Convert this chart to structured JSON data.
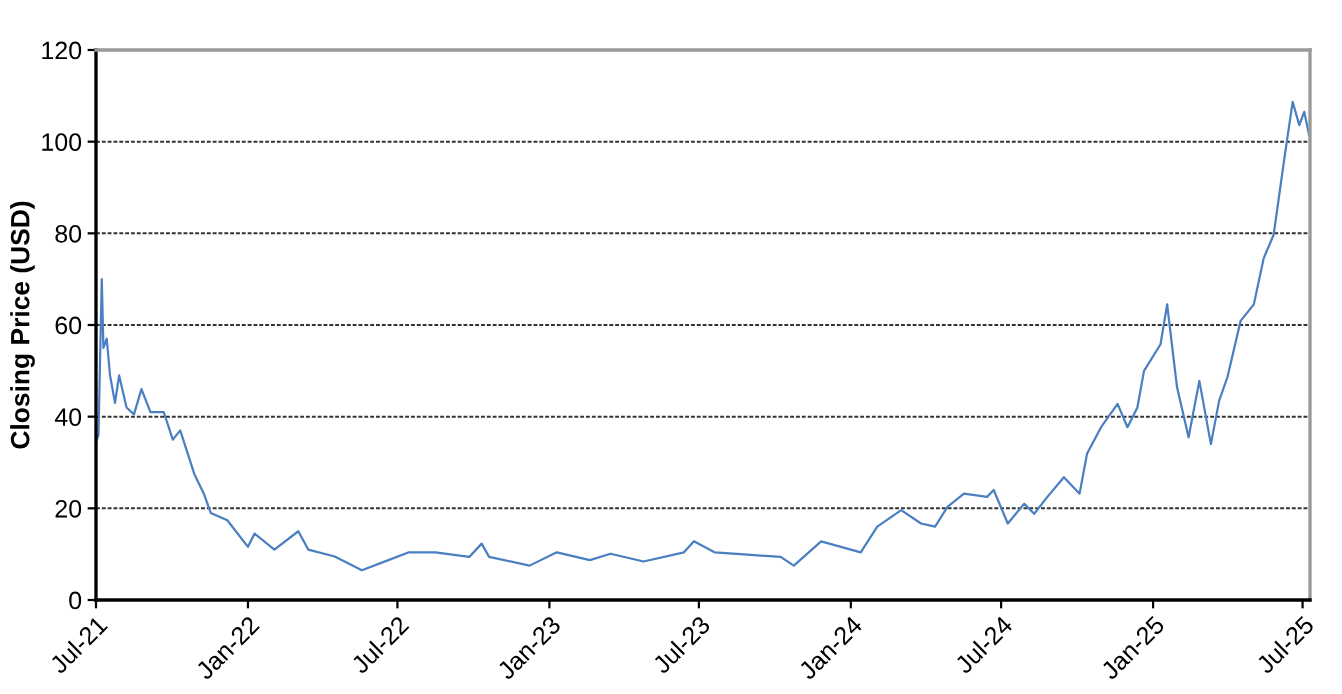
{
  "chart_data": {
    "type": "line",
    "ylabel": "Closing Price (USD)",
    "x": [
      "2021-07-02",
      "2021-07-04",
      "2021-07-08",
      "2021-07-10",
      "2021-07-14",
      "2021-07-18",
      "2021-07-24",
      "2021-07-29",
      "2021-08-07",
      "2021-08-16",
      "2021-08-25",
      "2021-09-05",
      "2021-09-21",
      "2021-10-02",
      "2021-10-11",
      "2021-10-28",
      "2021-11-09",
      "2021-11-17",
      "2021-12-07",
      "2022-01-01",
      "2022-01-09",
      "2022-02-02",
      "2022-03-03",
      "2022-03-15",
      "2022-04-16",
      "2022-05-19",
      "2022-06-20",
      "2022-07-15",
      "2022-08-16",
      "2022-09-26",
      "2022-10-11",
      "2022-10-20",
      "2022-12-08",
      "2023-01-10",
      "2023-02-19",
      "2023-03-16",
      "2023-04-25",
      "2023-06-13",
      "2023-06-25",
      "2023-07-20",
      "2023-08-29",
      "2023-10-08",
      "2023-10-24",
      "2023-11-26",
      "2024-01-13",
      "2024-02-02",
      "2024-03-02",
      "2024-03-26",
      "2024-04-12",
      "2024-04-27",
      "2024-05-17",
      "2024-06-14",
      "2024-06-22",
      "2024-07-09",
      "2024-07-29",
      "2024-08-10",
      "2024-08-26",
      "2024-09-15",
      "2024-10-04",
      "2024-10-13",
      "2024-10-30",
      "2024-11-19",
      "2024-12-01",
      "2024-12-13",
      "2024-12-21",
      "2025-01-10",
      "2025-01-18",
      "2025-01-30",
      "2025-02-13",
      "2025-02-26",
      "2025-03-12",
      "2025-03-22",
      "2025-04-01",
      "2025-04-17",
      "2025-05-03",
      "2025-05-15",
      "2025-05-27",
      "2025-06-09",
      "2025-06-19",
      "2025-06-27",
      "2025-07-03",
      "2025-07-09"
    ],
    "series": [
      {
        "color": "#4a7fc1",
        "values": [
          35,
          36,
          70,
          55,
          57,
          49,
          43,
          49,
          42,
          40.5,
          46,
          41,
          41,
          35,
          37,
          27.5,
          23,
          19,
          17.4,
          11.6,
          14.5,
          11,
          15,
          11,
          9.5,
          6.5,
          8.7,
          10.4,
          10.4,
          9.4,
          12.3,
          9.4,
          7.5,
          10.4,
          8.7,
          10.1,
          8.4,
          10.4,
          12.8,
          10.4,
          9.9,
          9.4,
          7.5,
          12.8,
          10.4,
          16,
          19.6,
          16.7,
          16,
          20.3,
          23.2,
          22.5,
          24,
          16.7,
          21,
          18.8,
          22.5,
          26.8,
          23.2,
          31.9,
          37.7,
          42.8,
          37.7,
          42,
          50,
          55.8,
          64.5,
          46.4,
          35.5,
          47.8,
          34,
          43.5,
          48.6,
          60.9,
          64.5,
          74.6,
          79.7,
          96.4,
          108.7,
          103.6,
          106.5,
          101.4
        ]
      }
    ],
    "xlim": [
      "2021-07-01",
      "2025-07-10"
    ],
    "xticks": [
      {
        "value": "2021-07-01",
        "label": "Jul-21"
      },
      {
        "value": "2022-01-01",
        "label": "Jan-22"
      },
      {
        "value": "2022-07-01",
        "label": "Jul-22"
      },
      {
        "value": "2023-01-01",
        "label": "Jan-23"
      },
      {
        "value": "2023-07-01",
        "label": "Jul-23"
      },
      {
        "value": "2024-01-01",
        "label": "Jan-24"
      },
      {
        "value": "2024-07-01",
        "label": "Jul-24"
      },
      {
        "value": "2025-01-01",
        "label": "Jan-25"
      },
      {
        "value": "2025-07-01",
        "label": "Jul-25"
      }
    ],
    "ylim": [
      0,
      120
    ],
    "yticks": [
      0,
      20,
      40,
      60,
      80,
      100,
      120
    ],
    "grid": "y",
    "line_style": "solid",
    "marker": "none",
    "legend": false
  }
}
